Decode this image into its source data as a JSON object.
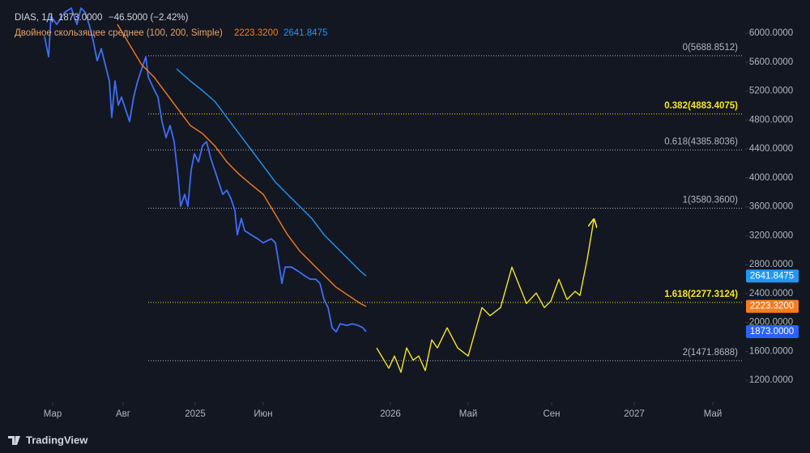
{
  "chart_data": {
    "type": "line",
    "header": {
      "symbol": "DIAS, 1Д",
      "price": "1873.0000",
      "change": "−46.5000 (−2.42%)",
      "indicator": "Двойное скользящее среднее (100, 200, Simple)",
      "ma1": "2223.3200",
      "ma2": "2641.8475"
    },
    "xlim": [
      0,
      92
    ],
    "xticks": [
      {
        "value": 6.5,
        "label": "Мар"
      },
      {
        "value": 15.2,
        "label": "Авг"
      },
      {
        "value": 24.1,
        "label": "2025"
      },
      {
        "value": 32.5,
        "label": "Июн"
      },
      {
        "value": 48.2,
        "label": "2026"
      },
      {
        "value": 57.8,
        "label": "Май"
      },
      {
        "value": 68.1,
        "label": "Сен"
      },
      {
        "value": 78.3,
        "label": "2027"
      },
      {
        "value": 88.0,
        "label": "Май"
      }
    ],
    "ylim": [
      900,
      6460
    ],
    "yticks": [
      {
        "value": 1200,
        "label": "1200.0000"
      },
      {
        "value": 1600,
        "label": "1600.0000"
      },
      {
        "value": 2000,
        "label": "2000.0000"
      },
      {
        "value": 2400,
        "label": "2400.0000"
      },
      {
        "value": 2800,
        "label": "2800.0000"
      },
      {
        "value": 3200,
        "label": "3200.0000"
      },
      {
        "value": 3600,
        "label": "3600.0000"
      },
      {
        "value": 4000,
        "label": "4000.0000"
      },
      {
        "value": 4400,
        "label": "4400.0000"
      },
      {
        "value": 4800,
        "label": "4800.0000"
      },
      {
        "value": 5200,
        "label": "5200.0000"
      },
      {
        "value": 5600,
        "label": "5600.0000"
      },
      {
        "value": 6000,
        "label": "6000.0000"
      }
    ],
    "grid": false,
    "series": [
      {
        "color": "#3d6ef5",
        "x": [
          5.5,
          6.0,
          6.3,
          7.0,
          8.0,
          8.8,
          9.5,
          10.0,
          10.5,
          11.0,
          11.5,
          12.0,
          12.5,
          13.0,
          13.5,
          13.8,
          14.2,
          14.6,
          15.0,
          15.5,
          16.0,
          16.5,
          17.0,
          17.5,
          18.0,
          18.3,
          19.0,
          19.5,
          20.0,
          20.5,
          21.0,
          21.5,
          22.0,
          22.3,
          22.8,
          23.2,
          23.6,
          24.0,
          24.5,
          25.0,
          25.5,
          26.0,
          26.5,
          27.0,
          27.5,
          28.0,
          28.5,
          29.0,
          29.3,
          29.8,
          30.2,
          31.0,
          31.8,
          32.5,
          33.5,
          34.0,
          34.5,
          34.8,
          35.2,
          36.0,
          36.8,
          37.5,
          38.3,
          39.0,
          39.5,
          40.0,
          40.5,
          41.0,
          41.5,
          42.0,
          42.8,
          43.5,
          44.2,
          44.8,
          45.2
        ],
        "values": [
          5955,
          5676,
          6235,
          6123,
          6291,
          6347,
          6123,
          6347,
          6291,
          6123,
          5899,
          5620,
          5787,
          5564,
          5340,
          4837,
          5340,
          5004,
          5116,
          4948,
          4780,
          5116,
          5340,
          5508,
          5676,
          5396,
          5228,
          5116,
          4780,
          4557,
          4724,
          4501,
          3997,
          3606,
          3773,
          3606,
          4109,
          4333,
          4221,
          4445,
          4501,
          4277,
          4109,
          3941,
          3773,
          3829,
          3717,
          3550,
          3214,
          3438,
          3270,
          3214,
          3158,
          3102,
          3158,
          3102,
          2766,
          2542,
          2766,
          2766,
          2710,
          2654,
          2598,
          2598,
          2542,
          2319,
          2207,
          1927,
          1871,
          1983,
          1961,
          1983,
          1961,
          1927,
          1873
        ]
      },
      {
        "color": "#f57c1f",
        "x": [
          14.5,
          16.0,
          17.5,
          19.0,
          20.5,
          22.0,
          23.5,
          25.0,
          26.5,
          28.0,
          29.5,
          31.0,
          32.5,
          34.0,
          35.5,
          37.0,
          38.5,
          40.0,
          41.5,
          43.0,
          44.5,
          45.2
        ],
        "values": [
          6123,
          5843,
          5564,
          5396,
          5172,
          4948,
          4724,
          4613,
          4445,
          4221,
          4053,
          3908,
          3773,
          3494,
          3214,
          2990,
          2822,
          2654,
          2487,
          2375,
          2263,
          2223.32
        ]
      },
      {
        "color": "#2196f3",
        "x": [
          21.8,
          23.5,
          25.0,
          26.5,
          28.0,
          29.5,
          31.0,
          32.5,
          34.0,
          35.5,
          37.0,
          38.5,
          40.0,
          41.5,
          43.0,
          44.5,
          45.2
        ],
        "values": [
          5508,
          5340,
          5206,
          5060,
          4837,
          4613,
          4389,
          4165,
          3941,
          3773,
          3606,
          3438,
          3214,
          3046,
          2878,
          2710,
          2641.8475
        ]
      },
      {
        "color": "#f5e625",
        "x": [
          46.5,
          48.0,
          48.7,
          49.5,
          50.2,
          51.0,
          51.7,
          52.5,
          53.3,
          54.0,
          55.2,
          56.5,
          57.8,
          59.5,
          60.5,
          61.8,
          63.2,
          65.0,
          66.2,
          67.2,
          68.0,
          69.0,
          70.0,
          71.0,
          71.6,
          72.5,
          73.3
        ],
        "values": [
          1648,
          1368,
          1536,
          1312,
          1648,
          1480,
          1536,
          1334,
          1759,
          1648,
          1927,
          1648,
          1536,
          2207,
          2095,
          2207,
          2766,
          2263,
          2408,
          2207,
          2296,
          2598,
          2319,
          2431,
          2375,
          2878,
          3415
        ]
      }
    ],
    "fib_levels": [
      {
        "value": 5688.8512,
        "label": "0(5688.8512)",
        "color": "#b2b5be",
        "highlight": false
      },
      {
        "value": 4883.4075,
        "label": "0.382(4883.4075)",
        "color": "#f5e625",
        "highlight": true
      },
      {
        "value": 4385.8036,
        "label": "0.618(4385.8036)",
        "color": "#b2b5be",
        "highlight": false
      },
      {
        "value": 3580.36,
        "label": "1(3580.3600)",
        "color": "#b2b5be",
        "highlight": false
      },
      {
        "value": 2277.3124,
        "label": "1.618(2277.3124)",
        "color": "#f5e625",
        "highlight": true
      },
      {
        "value": 1471.8688,
        "label": "2(1471.8688)",
        "color": "#b2b5be",
        "highlight": false
      }
    ],
    "price_badges": [
      {
        "value": 2641.8475,
        "label": "2641.8475",
        "color": "#2196f3"
      },
      {
        "value": 2223.32,
        "label": "2223.3200",
        "color": "#f57c1f"
      },
      {
        "value": 1873,
        "label": "1873.0000",
        "color": "#2962ff"
      }
    ],
    "brand": "TradingView"
  }
}
